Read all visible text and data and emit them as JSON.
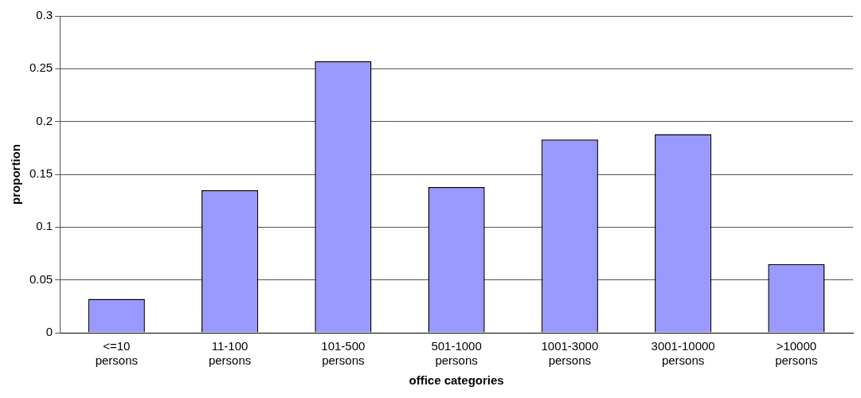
{
  "chart_data": {
    "type": "bar",
    "xlabel": "office categories",
    "ylabel": "proportion",
    "categories": [
      "<=10 persons",
      "11-100 persons",
      "101-500 persons",
      "501-1000 persons",
      "1001-3000 persons",
      "3001-10000 persons",
      ">10000 persons"
    ],
    "values": [
      0.032,
      0.135,
      0.257,
      0.138,
      0.183,
      0.188,
      0.065
    ],
    "color": "#9999ff",
    "ylim": [
      0,
      0.3
    ],
    "yticks": [
      0,
      0.05,
      0.1,
      0.15,
      0.2,
      0.25,
      0.3
    ],
    "grid": "y",
    "legend": false
  }
}
